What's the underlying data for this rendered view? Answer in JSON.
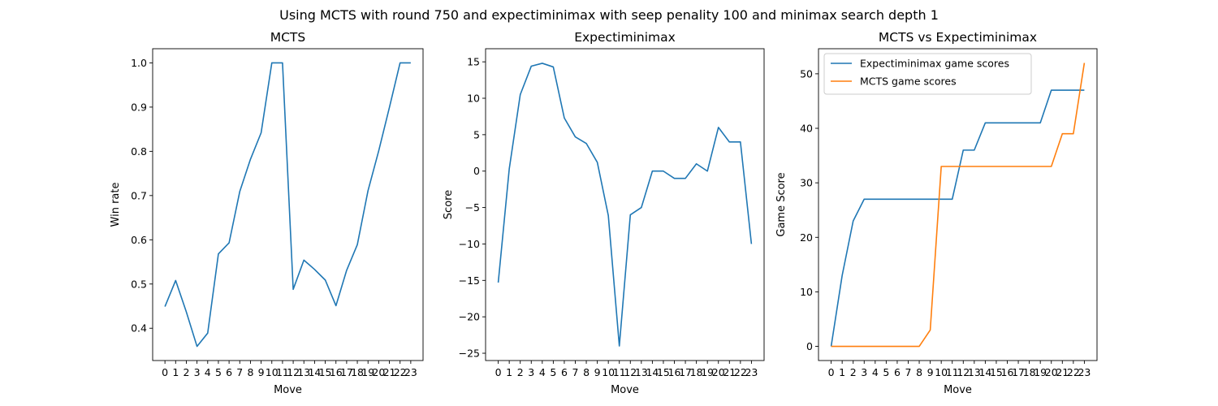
{
  "suptitle": "Using MCTS with round 750 and expectiminimax with seep penality 100 and minimax search depth 1",
  "chart_data": [
    {
      "type": "line",
      "title": "MCTS",
      "xlabel": "Move",
      "ylabel": "Win rate",
      "x": [
        0,
        1,
        2,
        3,
        4,
        5,
        6,
        7,
        8,
        9,
        10,
        11,
        12,
        13,
        14,
        15,
        16,
        17,
        18,
        19,
        20,
        21,
        22,
        23
      ],
      "xticks": [
        "0",
        "1",
        "2",
        "3",
        "4",
        "5",
        "6",
        "7",
        "8",
        "9",
        "10",
        "11",
        "12",
        "13",
        "14",
        "15",
        "16",
        "17",
        "18",
        "19",
        "20",
        "21",
        "22",
        "23"
      ],
      "xlim": [
        -1.15,
        24.15
      ],
      "ylim": [
        0.327,
        1.032
      ],
      "yticks": [
        0.4,
        0.5,
        0.6,
        0.7,
        0.8,
        0.9,
        1.0
      ],
      "ytick_labels": [
        "0.4",
        "0.5",
        "0.6",
        "0.7",
        "0.8",
        "0.9",
        "1.0"
      ],
      "series": [
        {
          "color": "#1f77b4",
          "values": [
            0.449,
            0.508,
            0.437,
            0.359,
            0.389,
            0.568,
            0.593,
            0.709,
            0.782,
            0.842,
            1.0,
            1.0,
            0.488,
            0.554,
            0.533,
            0.509,
            0.451,
            0.531,
            0.589,
            0.711,
            0.801,
            0.899,
            1.0,
            1.0
          ]
        }
      ]
    },
    {
      "type": "line",
      "title": "Expectiminimax",
      "xlabel": "Move",
      "ylabel": "Score",
      "x": [
        0,
        1,
        2,
        3,
        4,
        5,
        6,
        7,
        8,
        9,
        10,
        11,
        12,
        13,
        14,
        15,
        16,
        17,
        18,
        19,
        20,
        21,
        22,
        23
      ],
      "xticks": [
        "0",
        "1",
        "2",
        "3",
        "4",
        "5",
        "6",
        "7",
        "8",
        "9",
        "10",
        "11",
        "12",
        "13",
        "14",
        "15",
        "16",
        "17",
        "18",
        "19",
        "20",
        "21",
        "22",
        "23"
      ],
      "xlim": [
        -1.15,
        24.15
      ],
      "ylim": [
        -26.0,
        16.8
      ],
      "yticks": [
        -25,
        -20,
        -15,
        -10,
        -5,
        0,
        5,
        10,
        15
      ],
      "ytick_labels": [
        "−25",
        "−20",
        "−15",
        "−10",
        "−5",
        "0",
        "5",
        "10",
        "15"
      ],
      "series": [
        {
          "color": "#1f77b4",
          "values": [
            -15.3,
            0.3,
            10.5,
            14.4,
            14.8,
            14.3,
            7.3,
            4.7,
            3.8,
            1.2,
            -6.1,
            -24.0,
            -6.0,
            -5.0,
            0,
            0,
            -1,
            -1,
            1,
            0,
            6,
            4,
            4,
            -10
          ]
        }
      ]
    },
    {
      "type": "line",
      "title": "MCTS vs Expectiminimax",
      "xlabel": "Move",
      "ylabel": "Game Score",
      "x": [
        0,
        1,
        2,
        3,
        4,
        5,
        6,
        7,
        8,
        9,
        10,
        11,
        12,
        13,
        14,
        15,
        16,
        17,
        18,
        19,
        20,
        21,
        22,
        23
      ],
      "xticks": [
        "0",
        "1",
        "2",
        "3",
        "4",
        "5",
        "6",
        "7",
        "8",
        "9",
        "10",
        "11",
        "12",
        "13",
        "14",
        "15",
        "16",
        "17",
        "18",
        "19",
        "20",
        "21",
        "22",
        "23"
      ],
      "xlim": [
        -1.15,
        24.15
      ],
      "ylim": [
        -2.6,
        54.6
      ],
      "yticks": [
        0,
        10,
        20,
        30,
        40,
        50
      ],
      "ytick_labels": [
        "0",
        "10",
        "20",
        "30",
        "40",
        "50"
      ],
      "legend_position": "upper left",
      "series": [
        {
          "name": "Expectiminimax game scores",
          "color": "#1f77b4",
          "values": [
            0,
            13,
            23,
            27,
            27,
            27,
            27,
            27,
            27,
            27,
            27,
            27,
            36,
            36,
            41,
            41,
            41,
            41,
            41,
            41,
            47,
            47,
            47,
            47
          ]
        },
        {
          "name": "MCTS game scores",
          "color": "#ff7f0e",
          "values": [
            0,
            0,
            0,
            0,
            0,
            0,
            0,
            0,
            0,
            3,
            33,
            33,
            33,
            33,
            33,
            33,
            33,
            33,
            33,
            33,
            33,
            39,
            39,
            52
          ]
        }
      ]
    }
  ]
}
